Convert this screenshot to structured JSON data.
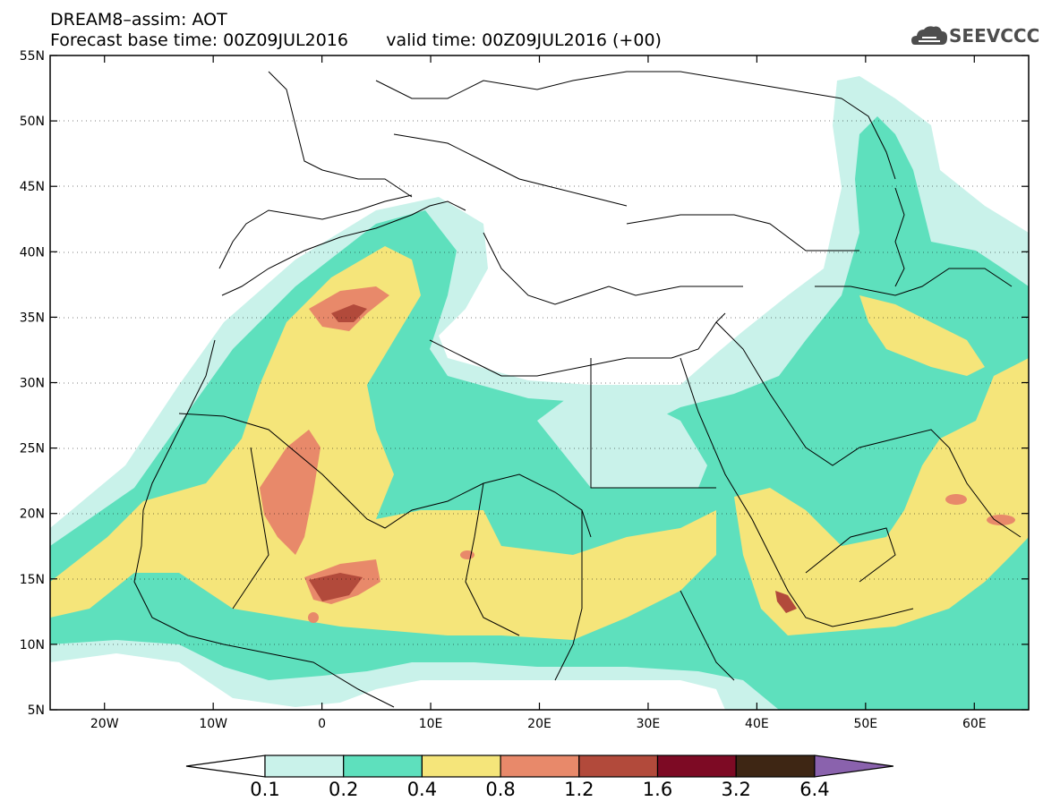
{
  "header": {
    "title": "DREAM8–assim: AOT",
    "base_time": "Forecast base time: 00Z09JUL2016",
    "valid_time": "valid time: 00Z09JUL2016 (+00)"
  },
  "logo": {
    "text": "SEEVCCC",
    "icon": "cloud-icon"
  },
  "axes": {
    "lat_ticks": [
      "55N",
      "50N",
      "45N",
      "40N",
      "35N",
      "30N",
      "25N",
      "20N",
      "15N",
      "10N",
      "5N"
    ],
    "lon_ticks": [
      "20W",
      "10W",
      "0",
      "10E",
      "20E",
      "30E",
      "40E",
      "50E",
      "60E"
    ],
    "lon_range": [
      -25,
      65
    ],
    "lat_range": [
      5,
      55
    ]
  },
  "legend": {
    "levels": [
      "0.1",
      "0.2",
      "0.4",
      "0.8",
      "1.2",
      "1.6",
      "3.2",
      "6.4"
    ],
    "colors": [
      "#ffffff",
      "#c9f2ea",
      "#5ee0bd",
      "#f5e57a",
      "#e8896a",
      "#b24a3b",
      "#7d0a24",
      "#3e2614",
      "#8a62ad"
    ]
  }
}
